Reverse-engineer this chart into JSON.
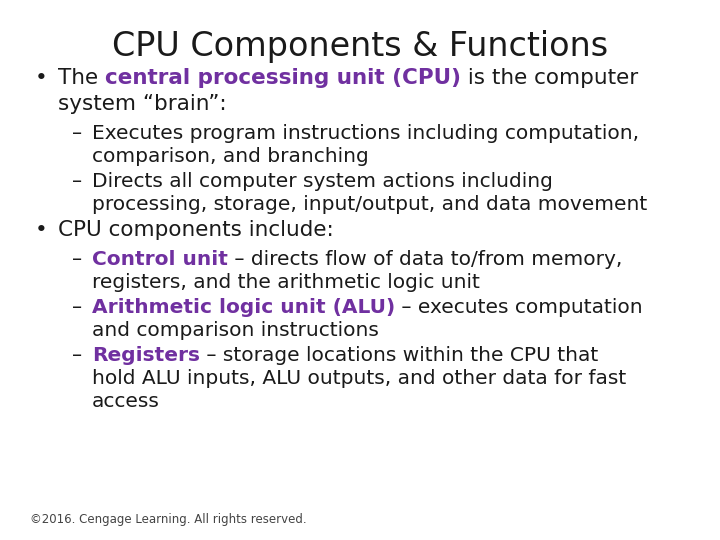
{
  "title": "CPU Components & Functions",
  "title_fontsize": 24,
  "title_color": "#1a1a1a",
  "background_color": "#ffffff",
  "purple_color": "#7030a0",
  "black_color": "#1a1a1a",
  "footer": "©2016. Cengage Learning. All rights reserved.",
  "footer_fontsize": 8.5,
  "content": [
    {
      "indent": 0,
      "bullet": "•",
      "lines": [
        [
          {
            "text": "The ",
            "bold": false,
            "color": "#1a1a1a"
          },
          {
            "text": "central processing unit (CPU)",
            "bold": true,
            "color": "#7030a0"
          },
          {
            "text": " is the computer",
            "bold": false,
            "color": "#1a1a1a"
          }
        ],
        [
          {
            "text": "system “brain”:",
            "bold": false,
            "color": "#1a1a1a"
          }
        ]
      ],
      "fontsize": 15.5
    },
    {
      "indent": 1,
      "bullet": "–",
      "lines": [
        [
          {
            "text": "Executes program instructions including computation,",
            "bold": false,
            "color": "#1a1a1a"
          }
        ],
        [
          {
            "text": "comparison, and branching",
            "bold": false,
            "color": "#1a1a1a"
          }
        ]
      ],
      "fontsize": 14.5
    },
    {
      "indent": 1,
      "bullet": "–",
      "lines": [
        [
          {
            "text": "Directs all computer system actions including",
            "bold": false,
            "color": "#1a1a1a"
          }
        ],
        [
          {
            "text": "processing, storage, input/output, and data movement",
            "bold": false,
            "color": "#1a1a1a"
          }
        ]
      ],
      "fontsize": 14.5
    },
    {
      "indent": 0,
      "bullet": "•",
      "lines": [
        [
          {
            "text": "CPU components include:",
            "bold": false,
            "color": "#1a1a1a"
          }
        ]
      ],
      "fontsize": 15.5
    },
    {
      "indent": 1,
      "bullet": "–",
      "lines": [
        [
          {
            "text": "Control unit",
            "bold": true,
            "color": "#7030a0"
          },
          {
            "text": " – directs flow of data to/from memory,",
            "bold": false,
            "color": "#1a1a1a"
          }
        ],
        [
          {
            "text": "registers, and the arithmetic logic unit",
            "bold": false,
            "color": "#1a1a1a"
          }
        ]
      ],
      "fontsize": 14.5
    },
    {
      "indent": 1,
      "bullet": "–",
      "lines": [
        [
          {
            "text": "Arithmetic logic unit (ALU)",
            "bold": true,
            "color": "#7030a0"
          },
          {
            "text": " – executes computation",
            "bold": false,
            "color": "#1a1a1a"
          }
        ],
        [
          {
            "text": "and comparison instructions",
            "bold": false,
            "color": "#1a1a1a"
          }
        ]
      ],
      "fontsize": 14.5
    },
    {
      "indent": 1,
      "bullet": "–",
      "lines": [
        [
          {
            "text": "Registers",
            "bold": true,
            "color": "#7030a0"
          },
          {
            "text": " – storage locations within the CPU that",
            "bold": false,
            "color": "#1a1a1a"
          }
        ],
        [
          {
            "text": "hold ALU inputs, ALU outputs, and other data for fast",
            "bold": false,
            "color": "#1a1a1a"
          }
        ],
        [
          {
            "text": "access",
            "bold": false,
            "color": "#1a1a1a"
          }
        ]
      ],
      "fontsize": 14.5
    }
  ]
}
